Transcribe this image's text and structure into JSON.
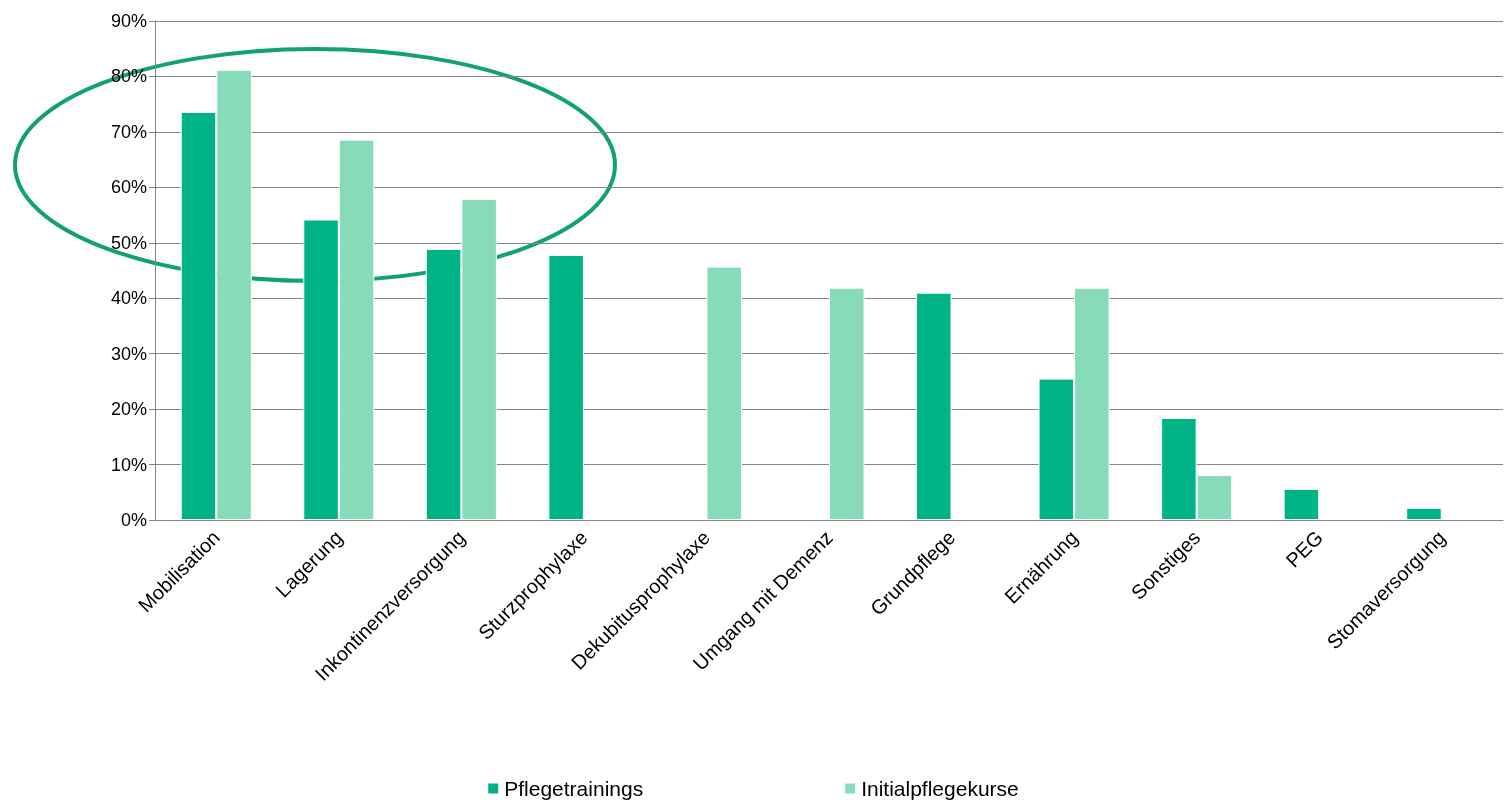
{
  "chart_data": {
    "type": "bar",
    "categories": [
      "Mobilisation",
      "Lagerung",
      "Inkontinenzversorgung",
      "Sturzprophylaxe",
      "Dekubitusprophylaxe",
      "Umgang mit Demenz",
      "Grundpflege",
      "Ernährung",
      "Sonstiges",
      "PEG",
      "Stomaversorgung"
    ],
    "series": [
      {
        "name": "Pflegetrainings",
        "color": "#00b386",
        "values": [
          73.6,
          54.2,
          48.9,
          47.8,
          null,
          null,
          41,
          25.5,
          18.4,
          5.6,
          2.2
        ]
      },
      {
        "name": "Initialpflegekurse",
        "color": "#88dbb9",
        "values": [
          81.2,
          68.6,
          57.9,
          null,
          45.7,
          41.9,
          null,
          41.9,
          8.1,
          null,
          null
        ]
      }
    ],
    "ylim": [
      0,
      90
    ],
    "yticks": [
      {
        "value": 0,
        "label": "0%"
      },
      {
        "value": 10,
        "label": "10%"
      },
      {
        "value": 20,
        "label": "20%"
      },
      {
        "value": 30,
        "label": "30%"
      },
      {
        "value": 40,
        "label": "40%"
      },
      {
        "value": 50,
        "label": "50%"
      },
      {
        "value": 60,
        "label": "60%"
      },
      {
        "value": 70,
        "label": "70%"
      },
      {
        "value": 80,
        "label": "80%"
      },
      {
        "value": 90,
        "label": "90%"
      }
    ],
    "grid": "y",
    "legend": "bottom"
  }
}
